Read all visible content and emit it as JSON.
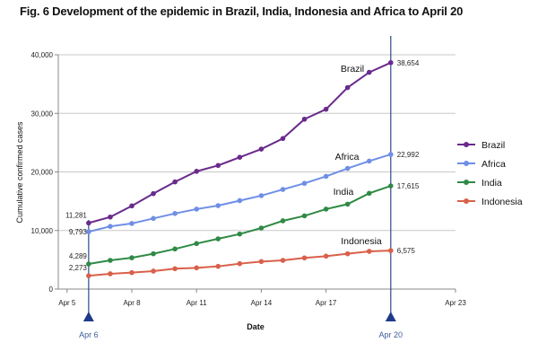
{
  "chart_data": {
    "type": "line",
    "title": "Fig. 6 Development of the epidemic in Brazil, India, Indonesia and Africa to April 20",
    "xlabel": "Date",
    "ylabel": "Cumulative confirmed cases",
    "ylim": [
      0,
      40000
    ],
    "xlim": [
      "Apr 5",
      "Apr 23"
    ],
    "yticks": [
      "0",
      "10,000",
      "20,000",
      "30,000",
      "40,000"
    ],
    "yticks_values": [
      0,
      10000,
      20000,
      30000,
      40000
    ],
    "xticks": [
      "Apr 5",
      "Apr 8",
      "Apr 11",
      "Apr 14",
      "Apr 17",
      "Apr 23"
    ],
    "xticks_days": [
      5,
      8,
      11,
      14,
      17,
      23
    ],
    "grid": "horizontal",
    "legend_placement": "right",
    "x_days": [
      6,
      7,
      8,
      9,
      10,
      11,
      12,
      13,
      14,
      15,
      16,
      17,
      18,
      19,
      20
    ],
    "series": [
      {
        "name": "Brazil",
        "color": "#6a2a8c",
        "inline_label": "Brazil",
        "values": [
          11281,
          12300,
          14200,
          16300,
          18300,
          20100,
          21100,
          22500,
          23900,
          25700,
          29000,
          30700,
          34400,
          37000,
          38654
        ],
        "start_label": "11,281",
        "end_label": "38,654"
      },
      {
        "name": "Africa",
        "color": "#6f8fe6",
        "inline_label": "Africa",
        "values": [
          9793,
          10700,
          11200,
          12060,
          12900,
          13650,
          14250,
          15100,
          15950,
          17000,
          18050,
          19250,
          20600,
          21850,
          22992
        ],
        "start_label": "9,793",
        "end_label": "22,992"
      },
      {
        "name": "India",
        "color": "#2f8a45",
        "inline_label": "India",
        "values": [
          4289,
          4900,
          5350,
          6030,
          6850,
          7770,
          8580,
          9400,
          10420,
          11650,
          12500,
          13650,
          14500,
          16350,
          17615
        ],
        "start_label": "4,289",
        "end_label": "17,615"
      },
      {
        "name": "Indonesia",
        "color": "#d9604a",
        "inline_label": "Indonesia",
        "values": [
          2273,
          2610,
          2810,
          3070,
          3480,
          3630,
          3880,
          4340,
          4700,
          4900,
          5320,
          5620,
          6030,
          6440,
          6575
        ],
        "start_label": "2,273",
        "end_label": "6,575"
      }
    ],
    "markers": [
      {
        "label": "Apr 6",
        "day": 6
      },
      {
        "label": "Apr 20",
        "day": 20
      }
    ],
    "marker_color": "#1f3a8a"
  }
}
